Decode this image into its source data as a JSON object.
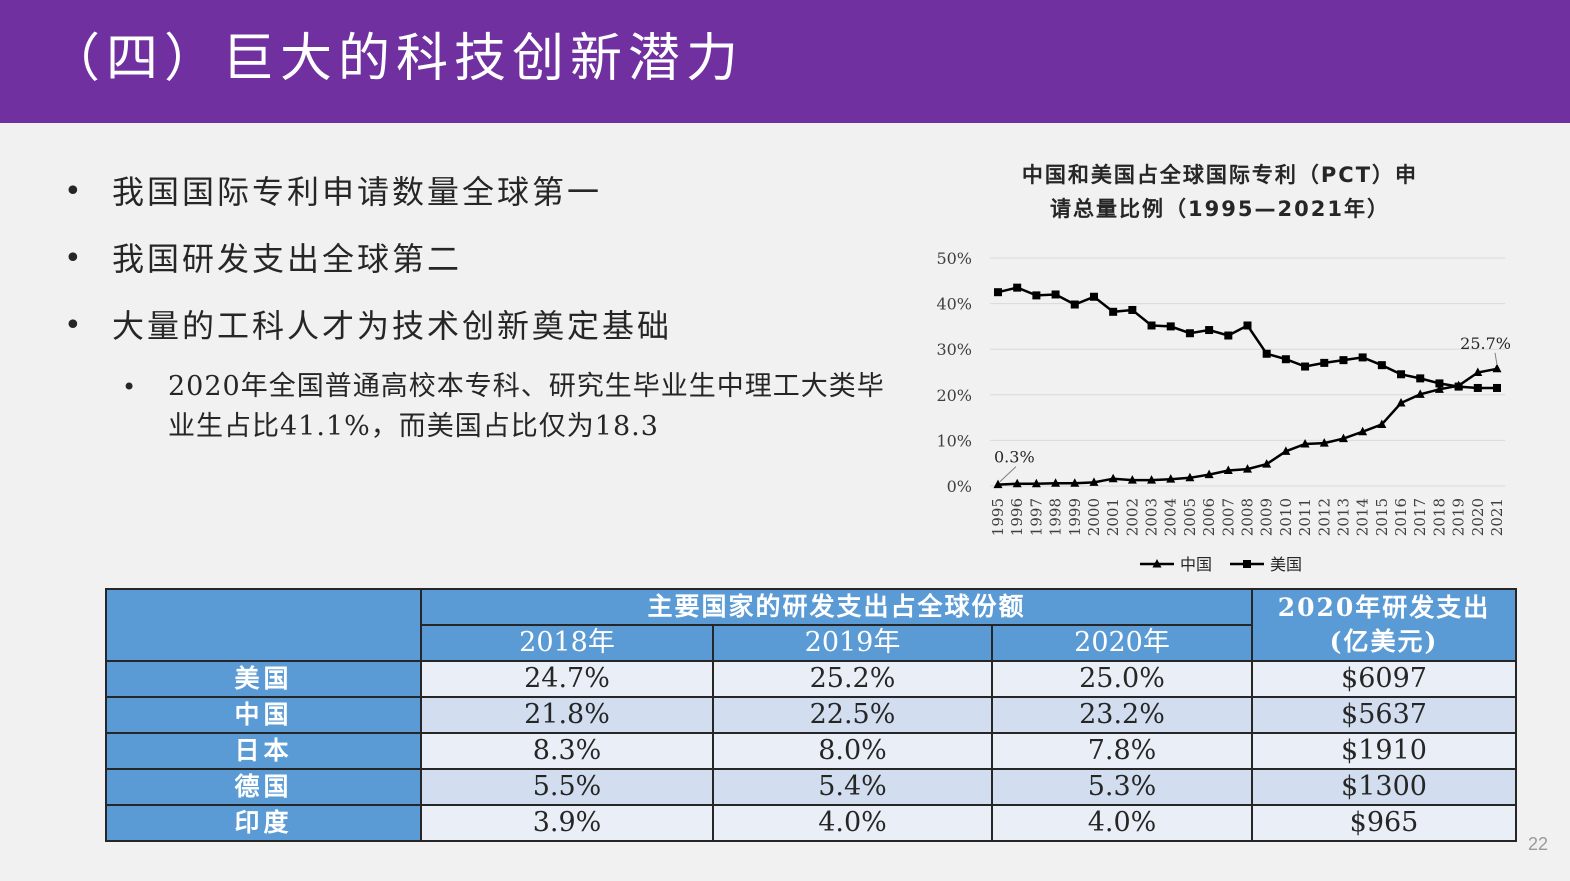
{
  "header": {
    "title": "（四）巨大的科技创新潜力"
  },
  "bullets": [
    "我国国际专利申请数量全球第一",
    "我国研发支出全球第二",
    "大量的工科人才为技术创新奠定基础"
  ],
  "sub_bullet": "2020年全国普通高校本专科、研究生毕业生中理工大类毕业生占比41.1%，而美国占比仅为18.3",
  "chart_title_line1": "中国和美国占全球国际专利（PCT）申",
  "chart_title_line2": "请总量比例（1995—2021年）",
  "chart_data": {
    "type": "line",
    "x": [
      "1995",
      "1996",
      "1997",
      "1998",
      "1999",
      "2000",
      "2001",
      "2002",
      "2003",
      "2004",
      "2005",
      "2006",
      "2007",
      "2008",
      "2009",
      "2010",
      "2011",
      "2012",
      "2013",
      "2014",
      "2015",
      "2016",
      "2017",
      "2018",
      "2019",
      "2020",
      "2021"
    ],
    "series": [
      {
        "name": "中国",
        "marker": "triangle",
        "values": [
          0.3,
          0.5,
          0.5,
          0.6,
          0.6,
          0.8,
          1.6,
          1.3,
          1.3,
          1.5,
          1.8,
          2.5,
          3.4,
          3.7,
          4.8,
          7.6,
          9.2,
          9.4,
          10.4,
          11.9,
          13.5,
          18.2,
          20.1,
          21.2,
          22.0,
          24.9,
          25.7
        ]
      },
      {
        "name": "美国",
        "marker": "square",
        "values": [
          42.5,
          43.5,
          41.8,
          42.0,
          39.8,
          41.5,
          38.2,
          38.6,
          35.2,
          35.0,
          33.5,
          34.2,
          33.0,
          35.2,
          29.0,
          27.8,
          26.2,
          27.0,
          27.6,
          28.2,
          26.5,
          24.5,
          23.6,
          22.5,
          21.8,
          21.5,
          21.5
        ]
      }
    ],
    "yticks": [
      "0%",
      "10%",
      "20%",
      "30%",
      "40%",
      "50%"
    ],
    "ylim": [
      0,
      50
    ],
    "annotations": {
      "china_start": "0.3%",
      "china_end": "25.7%"
    },
    "legend_position": "bottom",
    "line_color": "#000000"
  },
  "table": {
    "group_header": "主要国家的研发支出占全球份额",
    "spend_header_line1": "2020年研发支出",
    "spend_header_line2": "(亿美元)",
    "years": [
      "2018年",
      "2019年",
      "2020年"
    ],
    "rows": [
      {
        "country": "美国",
        "values": [
          "24.7%",
          "25.2%",
          "25.0%"
        ],
        "spend": "$6097"
      },
      {
        "country": "中国",
        "values": [
          "21.8%",
          "22.5%",
          "23.2%"
        ],
        "spend": "$5637"
      },
      {
        "country": "日本",
        "values": [
          "8.3%",
          "8.0%",
          "7.8%"
        ],
        "spend": "$1910"
      },
      {
        "country": "德国",
        "values": [
          "5.5%",
          "5.4%",
          "5.3%"
        ],
        "spend": "$1300"
      },
      {
        "country": "印度",
        "values": [
          "3.9%",
          "4.0%",
          "4.0%"
        ],
        "spend": "$965"
      }
    ]
  },
  "page_number": "22",
  "colors": {
    "header_bg": "#7030a0",
    "table_header_bg": "#5b9bd5",
    "row_light": "#eaeff7",
    "row_dark": "#d2deef"
  }
}
